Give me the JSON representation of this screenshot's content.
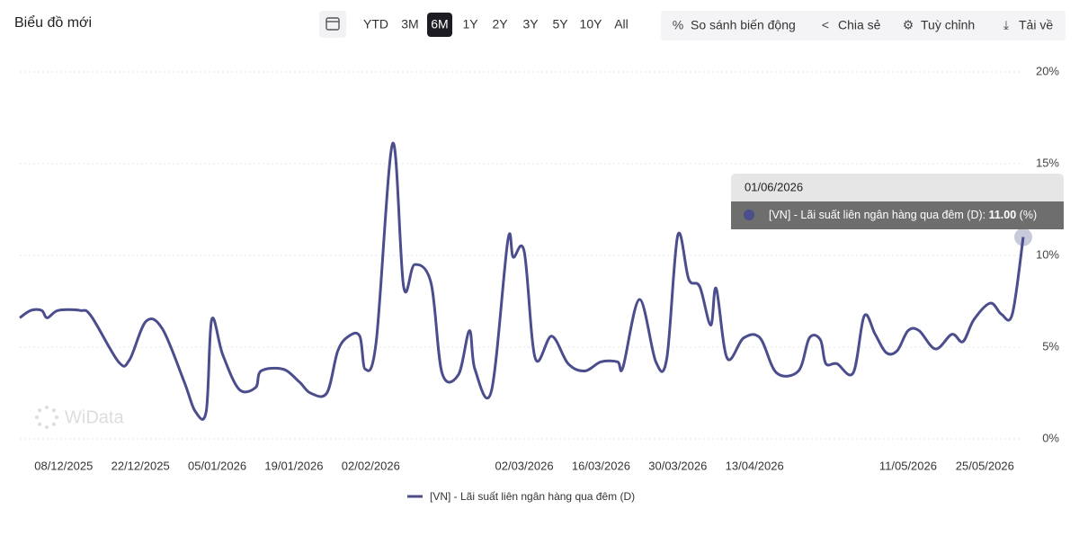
{
  "header": {
    "title": "Biểu đồ mới",
    "ranges": [
      "YTD",
      "3M",
      "6M",
      "1Y",
      "2Y",
      "3Y",
      "5Y",
      "10Y",
      "All"
    ],
    "active_range": "6M",
    "actions": [
      "So sánh biến động",
      "Chia sẻ",
      "Tuỳ chỉnh",
      "Tải về"
    ]
  },
  "watermark": "WiData",
  "chart_data": {
    "type": "line",
    "x": [
      "30/11/2025",
      "02/12/2025",
      "04/12/2025",
      "05/12/2025",
      "07/12/2025",
      "11/12/2025",
      "13/12/2025",
      "18/12/2025",
      "20/12/2025",
      "23/12/2025",
      "26/12/2025",
      "30/12/2025",
      "01/01/2026",
      "03/01/2026",
      "04/01/2026",
      "06/01/2026",
      "09/01/2026",
      "12/01/2026",
      "13/01/2026",
      "17/01/2026",
      "20/01/2026",
      "22/01/2026",
      "25/01/2026",
      "27/01/2026",
      "29/01/2026",
      "31/01/2026",
      "01/02/2026",
      "03/02/2026",
      "06/02/2026",
      "08/02/2026",
      "10/02/2026",
      "13/02/2026",
      "15/02/2026",
      "18/02/2026",
      "20/02/2026",
      "21/02/2026",
      "24/02/2026",
      "27/02/2026",
      "28/02/2026",
      "02/03/2026",
      "04/03/2026",
      "07/03/2026",
      "10/03/2026",
      "13/03/2026",
      "16/03/2026",
      "19/03/2026",
      "20/03/2026",
      "23/03/2026",
      "26/03/2026",
      "28/03/2026",
      "30/03/2026",
      "01/04/2026",
      "03/04/2026",
      "05/04/2026",
      "06/04/2026",
      "08/04/2026",
      "11/04/2026",
      "14/04/2026",
      "17/04/2026",
      "21/04/2026",
      "23/04/2026",
      "25/04/2026",
      "26/04/2026",
      "28/04/2026",
      "01/05/2026",
      "03/05/2026",
      "05/05/2026",
      "07/05/2026",
      "09/05/2026",
      "11/05/2026",
      "13/05/2026",
      "16/05/2026",
      "19/05/2026",
      "21/05/2026",
      "23/05/2026",
      "26/05/2026",
      "28/05/2026",
      "30/05/2026",
      "01/06/2026"
    ],
    "series": [
      {
        "name": "[VN] - Lãi suất liên ngân hàng qua đêm (D)",
        "color": "#4b4d8c",
        "values": [
          6.6,
          7.0,
          7.0,
          6.6,
          7.0,
          7.0,
          6.7,
          4.2,
          4.3,
          6.4,
          6.0,
          3.1,
          1.5,
          1.5,
          6.5,
          4.6,
          2.7,
          2.8,
          3.7,
          3.8,
          3.1,
          2.5,
          2.5,
          4.8,
          5.6,
          5.6,
          3.8,
          5.3,
          16.1,
          8.3,
          9.5,
          8.5,
          3.6,
          3.5,
          5.9,
          3.8,
          2.6,
          10.8,
          9.9,
          10.2,
          4.4,
          5.6,
          4.1,
          3.7,
          4.2,
          4.2,
          3.9,
          7.6,
          4.2,
          4.4,
          11.1,
          8.7,
          8.3,
          6.2,
          8.2,
          4.4,
          5.5,
          5.5,
          3.6,
          3.7,
          5.5,
          5.4,
          4.1,
          4.1,
          3.6,
          6.7,
          5.7,
          4.7,
          4.8,
          5.9,
          5.9,
          4.9,
          5.7,
          5.3,
          6.5,
          7.4,
          6.8,
          6.8,
          11.0
        ]
      }
    ],
    "xlim": [
      "30/11/2025",
      "01/06/2026"
    ],
    "xticks": [
      "08/12/2025",
      "22/12/2025",
      "05/01/2026",
      "19/01/2026",
      "02/02/2026",
      "02/03/2026",
      "16/03/2026",
      "30/03/2026",
      "13/04/2026",
      "11/05/2026",
      "25/05/2026"
    ],
    "ylim": [
      0,
      20
    ],
    "yticks": [
      {
        "value": 0,
        "label": "0%"
      },
      {
        "value": 5,
        "label": "5%"
      },
      {
        "value": 10,
        "label": "10%"
      },
      {
        "value": 15,
        "label": "15%"
      },
      {
        "value": 20,
        "label": "20%"
      }
    ],
    "grid": true,
    "tooltip": {
      "title": "01/06/2026",
      "label": "[VN] - Lãi suất liên ngân hàng qua đêm (D):",
      "value": "11.00",
      "unit": "(%)"
    }
  }
}
